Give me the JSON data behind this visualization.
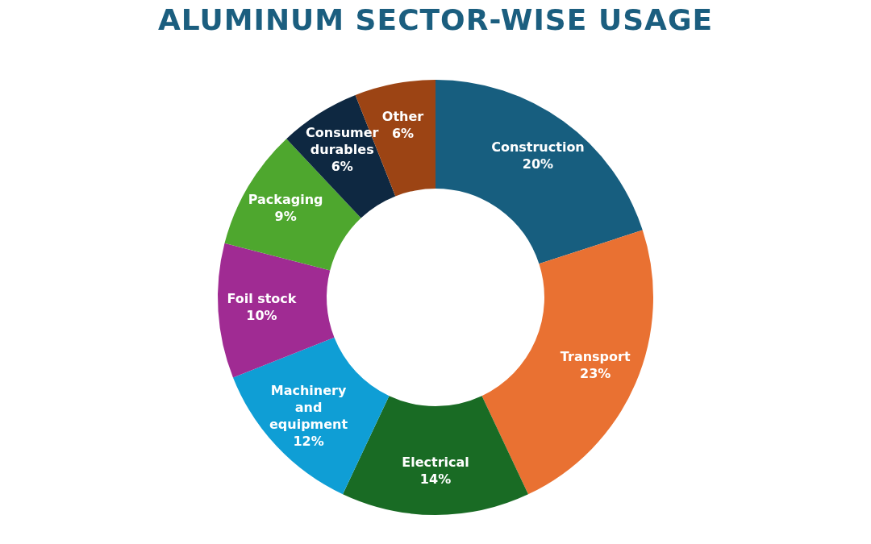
{
  "chart_data": {
    "type": "donut",
    "title": "ALUMINUM SECTOR-WISE USAGE",
    "categories": [
      "Construction",
      "Transport",
      "Electrical",
      "Machinery and equipment",
      "Foil stock",
      "Packaging",
      "Consumer durables",
      "Other"
    ],
    "values": [
      20,
      23,
      14,
      12,
      10,
      9,
      6,
      6
    ],
    "value_labels": [
      "20%",
      "23%",
      "14%",
      "12%",
      "10%",
      "9%",
      "6%",
      "6%"
    ],
    "colors": [
      "#175e7f",
      "#e97132",
      "#196b24",
      "#0f9ed5",
      "#a02b93",
      "#4ea72e",
      "#0e2841",
      "#9c4414"
    ],
    "legend": false
  }
}
